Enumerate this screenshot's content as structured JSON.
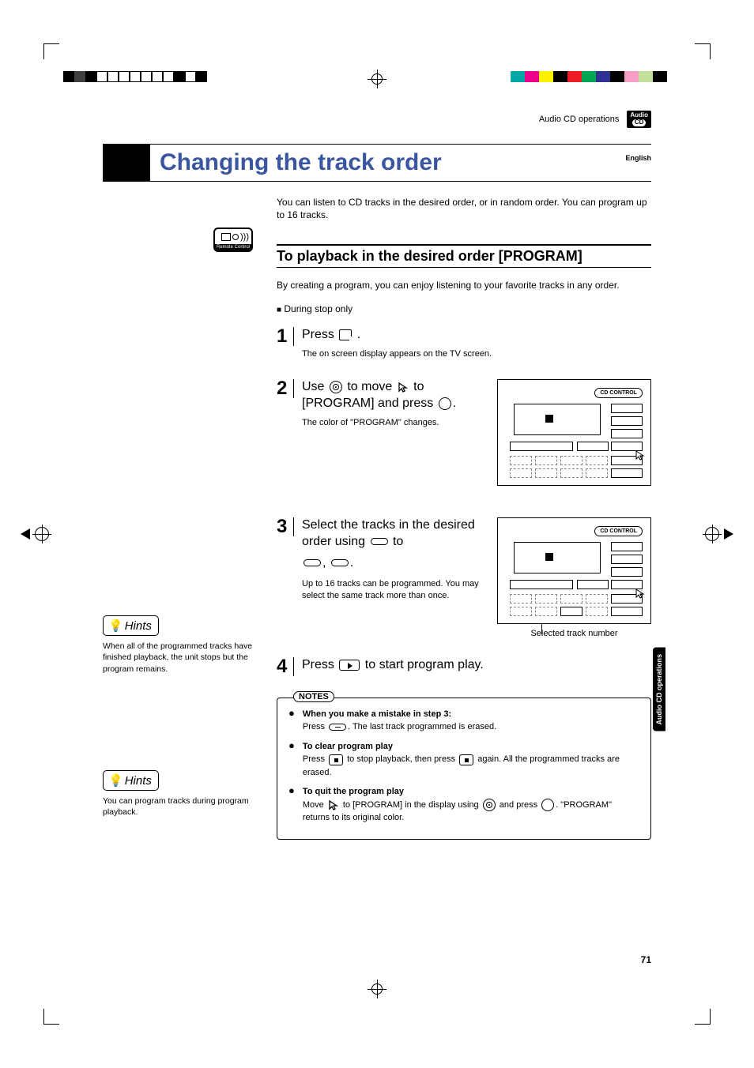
{
  "header": {
    "breadcrumb": "Audio CD operations",
    "badge_line1": "Audio",
    "badge_line2": "CD",
    "language": "English"
  },
  "title": "Changing the track order",
  "intro": "You can listen to CD tracks in the desired order, or in random order.  You can program up to 16 tracks.",
  "section_heading": "To playback in the desired order [PROGRAM]",
  "section_sub": "By creating a program, you can enjoy listening to your favorite tracks in any order.",
  "condition": "During stop only",
  "remote_label": "Remote Control",
  "steps": {
    "s1": {
      "num": "1",
      "title_a": "Press ",
      "title_b": " .",
      "desc": "The on screen display appears on the TV screen."
    },
    "s2": {
      "num": "2",
      "title_a": "Use ",
      "title_b": " to move ",
      "title_c": " to [PROGRAM] and press ",
      "title_d": ".",
      "desc": "The color of \"PROGRAM\" changes."
    },
    "s3": {
      "num": "3",
      "title_a": "Select the tracks in the desired order using ",
      "title_b": " to ",
      "title_c": ", ",
      "title_d": ".",
      "desc": "Up to 16 tracks can be programmed. You may select the same track more than once.",
      "caption": "Selected track number"
    },
    "s4": {
      "num": "4",
      "title_a": "Press ",
      "title_b": " to start program play."
    }
  },
  "diagram_label": "CD CONTROL",
  "hints": [
    {
      "text": "When all of the programmed tracks have finished playback, the unit stops but the program remains."
    },
    {
      "text": "You can program tracks during program playback."
    }
  ],
  "hints_label": "Hints",
  "notes": {
    "label": "NOTES",
    "items": [
      {
        "head": "When you make a mistake in step 3:",
        "body_a": "Press ",
        "body_b": ". The last track programmed is erased."
      },
      {
        "head": "To clear program play",
        "body_a": "Press ",
        "body_b": " to stop playback, then press ",
        "body_c": " again.  All the programmed tracks are erased."
      },
      {
        "head": "To quit the program play",
        "body_a": "Move ",
        "body_b": " to [PROGRAM] in the display using ",
        "body_c": " and press ",
        "body_d": ". \"PROGRAM\" returns to its original color."
      }
    ]
  },
  "side_tab": "Audio CD\noperations",
  "page_number": "71",
  "colorbars": {
    "left": [
      "#000000",
      "#404040",
      "#000000",
      "#ffffff",
      "#ffffff",
      "#ffffff",
      "#ffffff",
      "#ffffff",
      "#ffffff",
      "#ffffff",
      "#000000",
      "#ffffff",
      "#000000"
    ],
    "right": [
      "#00a9a5",
      "#ec008c",
      "#fff200",
      "#000000",
      "#ed1c24",
      "#00a651",
      "#2e3192",
      "#000000",
      "#f69ec4",
      "#c4df9b",
      "#000000"
    ]
  },
  "colorbar_left_borders": [
    false,
    false,
    false,
    true,
    true,
    true,
    true,
    true,
    true,
    true,
    false,
    true,
    false
  ]
}
